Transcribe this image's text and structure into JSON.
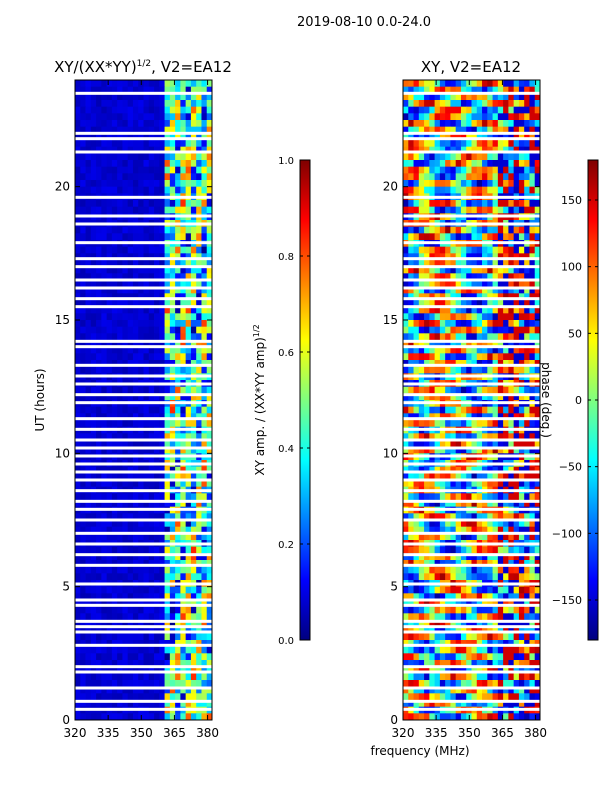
{
  "suptitle": "2019-08-10 0.0-24.0",
  "xlabel_shared": "frequency (MHz)",
  "chart_data": [
    {
      "type": "heatmap",
      "title": "XY/(XX*YY)",
      "title_sup": "1/2",
      "title_suffix": ", V2=EA12",
      "xlabel": "",
      "ylabel": "UT (hours)",
      "xlim": [
        320,
        382
      ],
      "ylim": [
        0,
        24
      ],
      "xticks": [
        320,
        335,
        350,
        365,
        380
      ],
      "yticks": [
        0,
        5,
        10,
        15,
        20
      ],
      "signal_band_mhz": [
        360,
        382
      ],
      "value_range": [
        0.0,
        1.0
      ],
      "gap_hours": [
        23.5,
        22.0,
        21.8,
        21.3,
        19.6,
        18.9,
        18.6,
        17.9,
        17.3,
        17.0,
        16.5,
        16.2,
        15.8,
        15.5,
        14.2,
        14.0,
        13.3,
        12.9,
        12.6,
        12.2,
        11.9,
        11.3,
        10.9,
        10.5,
        10.2,
        9.9,
        9.6,
        9.3,
        9.0,
        8.6,
        8.2,
        7.9,
        7.5,
        7.0,
        6.6,
        6.2,
        5.8,
        5.1,
        4.5,
        4.3,
        3.7,
        3.5,
        3.3,
        2.8,
        2.0,
        1.8,
        1.2,
        0.7,
        0.4
      ]
    },
    {
      "type": "heatmap",
      "title": "XY, V2=EA12",
      "xlabel": "frequency (MHz)",
      "ylabel": "",
      "xlim": [
        320,
        382
      ],
      "ylim": [
        0,
        24
      ],
      "xticks": [
        320,
        335,
        350,
        365,
        380
      ],
      "yticks": [
        0,
        5,
        10,
        15,
        20
      ],
      "value_range": [
        -180,
        180
      ],
      "gap_hours": [
        23.5,
        22.0,
        21.8,
        21.3,
        19.6,
        18.9,
        18.6,
        17.9,
        17.3,
        17.0,
        16.5,
        16.2,
        15.8,
        15.5,
        14.2,
        14.0,
        13.3,
        12.9,
        12.6,
        12.2,
        11.9,
        11.3,
        10.9,
        10.5,
        10.2,
        9.9,
        9.6,
        9.3,
        9.0,
        8.6,
        8.2,
        7.9,
        7.5,
        7.0,
        6.6,
        6.2,
        5.8,
        5.1,
        4.5,
        4.3,
        3.7,
        3.5,
        3.3,
        2.8,
        2.0,
        1.8,
        1.2,
        0.7,
        0.4
      ]
    }
  ],
  "colorbars": [
    {
      "label": "XY amp. / (XX*YY amp)",
      "label_sup": "1/2",
      "range": [
        0.0,
        1.0
      ],
      "ticks": [
        "0.0",
        "0.2",
        "0.4",
        "0.6",
        "0.8",
        "1.0"
      ],
      "tick_values": [
        0.0,
        0.2,
        0.4,
        0.6,
        0.8,
        1.0
      ]
    },
    {
      "label": "phase (deg.)",
      "range": [
        -180,
        180
      ],
      "ticks": [
        "−150",
        "−100",
        "−50",
        "0",
        "50",
        "100",
        "150"
      ],
      "tick_values": [
        -150,
        -100,
        -50,
        0,
        50,
        100,
        150
      ]
    }
  ]
}
